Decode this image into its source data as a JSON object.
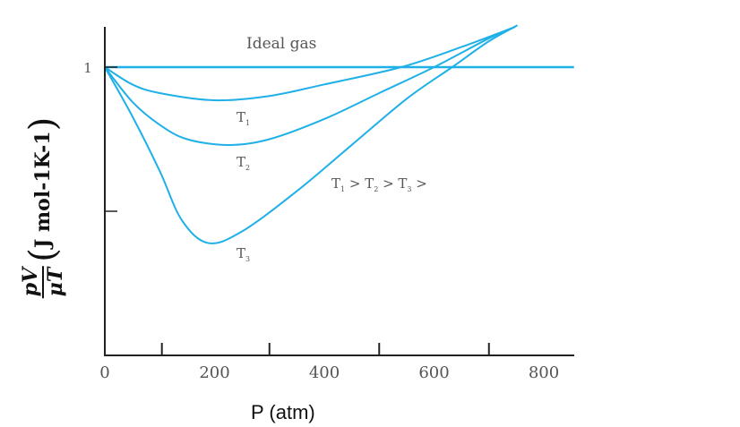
{
  "chart_data": {
    "type": "line",
    "title": "",
    "xlabel": "P (atm)",
    "ylabel": {
      "numerator": "pV",
      "denominator": "μT",
      "units": "J mol-1K-1"
    },
    "xlim": [
      0,
      855
    ],
    "ylim": [
      0,
      1.14
    ],
    "xticks": [
      0,
      200,
      400,
      600,
      800
    ],
    "xtick_labels": [
      "0",
      "200",
      "400",
      "600",
      "800"
    ],
    "yticks": [
      1,
      0.5
    ],
    "ytick_labels": [
      "1",
      ""
    ],
    "grid": false,
    "series": [
      {
        "name": "Ideal gas",
        "label": "Ideal gas",
        "x": [
          0,
          855
        ],
        "y": [
          1,
          1
        ]
      },
      {
        "name": "T1",
        "label": "T",
        "sub": "1",
        "x": [
          0,
          50,
          100,
          200,
          300,
          400,
          540,
          650,
          748
        ],
        "y": [
          1,
          0.94,
          0.91,
          0.885,
          0.9,
          0.94,
          1.0,
          1.07,
          1.14
        ]
      },
      {
        "name": "T2",
        "label": "T",
        "sub": "2",
        "x": [
          0,
          50,
          100,
          150,
          225,
          300,
          400,
          500,
          600,
          700,
          748
        ],
        "y": [
          1,
          0.88,
          0.8,
          0.75,
          0.73,
          0.75,
          0.82,
          0.91,
          1.0,
          1.1,
          1.14
        ]
      },
      {
        "name": "T3",
        "label": "T",
        "sub": "3",
        "x": [
          0,
          50,
          100,
          140,
          188,
          250,
          350,
          450,
          550,
          633,
          700,
          752
        ],
        "y": [
          1,
          0.83,
          0.64,
          0.47,
          0.39,
          0.43,
          0.57,
          0.73,
          0.89,
          1.0,
          1.09,
          1.145
        ]
      }
    ],
    "annotations": [
      {
        "text": "T1 > T2 > T3 >",
        "parts": [
          "T",
          "1",
          " > T",
          "2",
          " > T",
          "3",
          " >"
        ]
      }
    ],
    "line_color": "#1fb0e8"
  }
}
